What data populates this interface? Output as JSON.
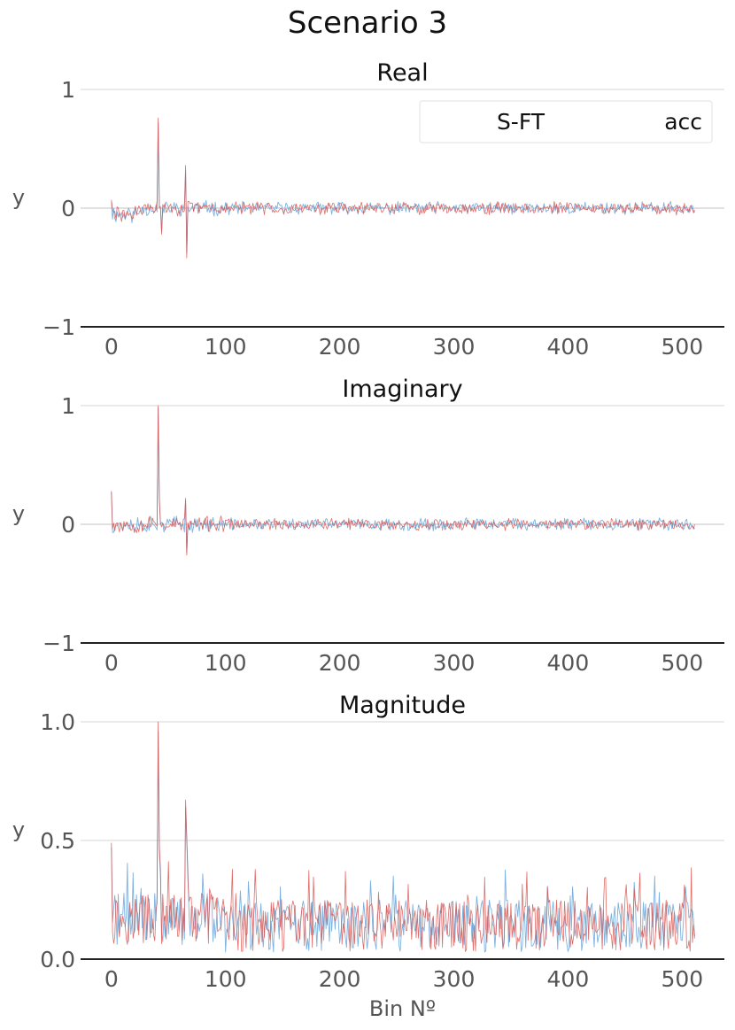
{
  "figure": {
    "title": "Scenario 3"
  },
  "colors": {
    "series_sft": "#6fa8dc",
    "series_acc": "#d9534f"
  },
  "chart_data": [
    {
      "type": "line",
      "title": "Real",
      "xlabel": "",
      "ylabel": "y",
      "xlim": [
        -27,
        537
      ],
      "ylim": [
        -1,
        1
      ],
      "xticks": [
        0,
        100,
        200,
        300,
        400,
        500
      ],
      "xtick_labels": [
        "0",
        "100",
        "200",
        "300",
        "400",
        "500"
      ],
      "yticks": [
        -1,
        0,
        1
      ],
      "ytick_labels": [
        "−1",
        "0",
        "1"
      ],
      "grid": true,
      "legend": "top-right",
      "n_points": 512,
      "series": [
        {
          "name": "S-FT",
          "generator": "real",
          "seed": 11,
          "features": [
            [
              0,
              0.05
            ],
            [
              41,
              0.72
            ],
            [
              44,
              -0.2
            ],
            [
              65,
              0.32
            ],
            [
              66,
              -0.38
            ]
          ]
        },
        {
          "name": "acc",
          "generator": "real",
          "seed": 29,
          "features": [
            [
              0,
              0.07
            ],
            [
              41,
              0.76
            ],
            [
              44,
              -0.22
            ],
            [
              65,
              0.36
            ],
            [
              66,
              -0.42
            ]
          ]
        }
      ]
    },
    {
      "type": "line",
      "title": "Imaginary",
      "xlabel": "",
      "ylabel": "y",
      "xlim": [
        -27,
        537
      ],
      "ylim": [
        -1,
        1
      ],
      "xticks": [
        0,
        100,
        200,
        300,
        400,
        500
      ],
      "xtick_labels": [
        "0",
        "100",
        "200",
        "300",
        "400",
        "500"
      ],
      "yticks": [
        -1,
        0,
        1
      ],
      "ytick_labels": [
        "−1",
        "0",
        "1"
      ],
      "grid": true,
      "n_points": 512,
      "series": [
        {
          "name": "S-FT",
          "generator": "imag",
          "seed": 37,
          "features": [
            [
              0,
              0.27
            ],
            [
              41,
              0.98
            ],
            [
              42,
              0.2
            ],
            [
              65,
              0.2
            ],
            [
              66,
              -0.24
            ]
          ]
        },
        {
          "name": "acc",
          "generator": "imag",
          "seed": 53,
          "features": [
            [
              0,
              0.28
            ],
            [
              41,
              1.0
            ],
            [
              42,
              0.22
            ],
            [
              65,
              0.22
            ],
            [
              66,
              -0.26
            ]
          ]
        }
      ]
    },
    {
      "type": "line",
      "title": "Magnitude",
      "xlabel": "Bin Nº",
      "ylabel": "y",
      "xlim": [
        -27,
        537
      ],
      "ylim": [
        0,
        1
      ],
      "xticks": [
        0,
        100,
        200,
        300,
        400,
        500
      ],
      "xtick_labels": [
        "0",
        "100",
        "200",
        "300",
        "400",
        "500"
      ],
      "yticks": [
        0,
        0.5,
        1
      ],
      "ytick_labels": [
        "0.0",
        "0.5",
        "1.0"
      ],
      "grid": true,
      "n_points": 512,
      "series": [
        {
          "name": "S-FT",
          "generator": "mag",
          "seed": 71,
          "features": [
            [
              0,
              0.47
            ],
            [
              41,
              0.96
            ],
            [
              42,
              0.45
            ],
            [
              43,
              0.35
            ],
            [
              65,
              0.64
            ],
            [
              66,
              0.5
            ]
          ]
        },
        {
          "name": "acc",
          "generator": "mag",
          "seed": 97,
          "features": [
            [
              0,
              0.49
            ],
            [
              41,
              1.0
            ],
            [
              42,
              0.48
            ],
            [
              43,
              0.38
            ],
            [
              65,
              0.67
            ],
            [
              66,
              0.52
            ]
          ]
        }
      ]
    }
  ]
}
